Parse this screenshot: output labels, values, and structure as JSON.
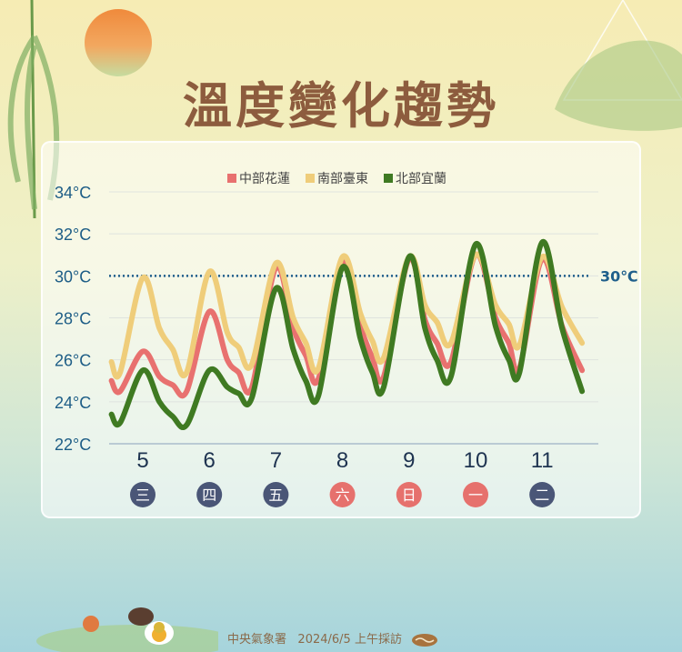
{
  "title": "溫度變化趨勢",
  "footer": {
    "source": "中央氣象署",
    "date": "2024/6/5",
    "note": "上午採訪",
    "logo_icon": "cwa-logo-icon"
  },
  "chart_data": {
    "type": "line",
    "title": "溫度變化趨勢",
    "legend_position": "top-center",
    "grid": true,
    "ylim": [
      22,
      34
    ],
    "yticks": [
      "22°C",
      "24°C",
      "26°C",
      "28°C",
      "30°C",
      "32°C",
      "34°C"
    ],
    "ytick_values": [
      22,
      24,
      26,
      28,
      30,
      32,
      34
    ],
    "reference_line": {
      "value": 30,
      "label": "30℃",
      "color": "#1f5f8b"
    },
    "xticks": [
      {
        "value": 5,
        "label": "5",
        "weekday": "三",
        "weekend": false
      },
      {
        "value": 6,
        "label": "6",
        "weekday": "四",
        "weekend": false
      },
      {
        "value": 7,
        "label": "7",
        "weekday": "五",
        "weekend": false
      },
      {
        "value": 8,
        "label": "8",
        "weekday": "六",
        "weekend": true
      },
      {
        "value": 9,
        "label": "9",
        "weekday": "日",
        "weekend": true
      },
      {
        "value": 10,
        "label": "10",
        "weekday": "一",
        "weekend": true
      },
      {
        "value": 11,
        "label": "11",
        "weekday": "二",
        "weekend": false
      }
    ],
    "x": [
      4.53,
      4.66,
      5,
      5.25,
      5.45,
      5.66,
      6,
      6.27,
      6.44,
      6.64,
      7,
      7.26,
      7.45,
      7.64,
      8,
      8.27,
      8.45,
      8.62,
      9,
      9.24,
      9.42,
      9.63,
      10,
      10.3,
      10.5,
      10.66,
      11,
      11.3,
      11.6
    ],
    "series": [
      {
        "name": "中部花蓮",
        "color": "#e8716f",
        "values": [
          25.0,
          24.5,
          26.4,
          25.2,
          24.8,
          24.5,
          28.3,
          26.0,
          25.4,
          24.7,
          30.4,
          27.5,
          26.2,
          25.1,
          30.7,
          27.6,
          26.1,
          25.2,
          30.8,
          27.9,
          26.8,
          25.9,
          31.0,
          28.0,
          26.8,
          25.6,
          30.8,
          27.6,
          25.5
        ]
      },
      {
        "name": "南部臺東",
        "color": "#efcd7a",
        "values": [
          25.9,
          25.4,
          29.9,
          27.5,
          26.5,
          25.4,
          30.2,
          27.3,
          26.6,
          25.8,
          30.6,
          28.0,
          26.8,
          25.6,
          30.9,
          28.2,
          26.9,
          26.1,
          30.9,
          28.6,
          27.8,
          26.8,
          31.0,
          28.6,
          27.7,
          26.7,
          30.9,
          28.5,
          26.8
        ]
      },
      {
        "name": "北部宜蘭",
        "color": "#3f7a22",
        "values": [
          23.4,
          23.0,
          25.5,
          24.0,
          23.3,
          22.9,
          25.5,
          24.7,
          24.4,
          24.2,
          29.4,
          26.5,
          25.0,
          24.3,
          30.4,
          27.0,
          25.4,
          24.7,
          30.9,
          27.5,
          26.0,
          25.2,
          31.5,
          27.6,
          26.0,
          25.4,
          31.6,
          27.5,
          24.5
        ]
      }
    ],
    "weekday_colors": {
      "weekday": "#4a5677",
      "weekend": "#e6716d"
    }
  }
}
